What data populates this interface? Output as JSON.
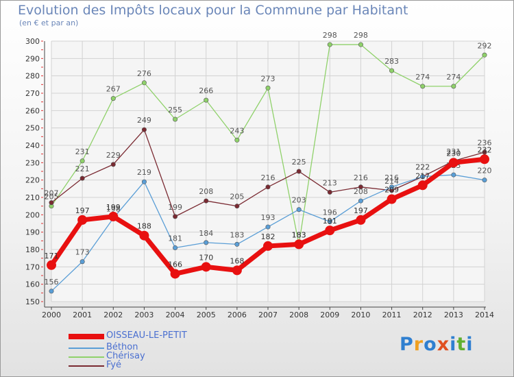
{
  "title": "Evolution des Impôts locaux pour la Commune par Habitant",
  "subtitle": "(en € et par an)",
  "logo": [
    "P",
    "r",
    "o",
    "x",
    "i",
    "t",
    "i"
  ],
  "logo_colors": [
    "#2f7fd0",
    "#f0a020",
    "#2f7fd0",
    "#e05020",
    "#2f7fd0",
    "#60b030",
    "#2f7fd0"
  ],
  "chart_data": {
    "type": "line",
    "x": [
      2000,
      2001,
      2002,
      2003,
      2004,
      2005,
      2006,
      2007,
      2008,
      2009,
      2010,
      2011,
      2012,
      2013,
      2014
    ],
    "ylim": [
      150,
      300
    ],
    "yticks": [
      150,
      160,
      170,
      180,
      190,
      200,
      210,
      220,
      230,
      240,
      250,
      260,
      270,
      280,
      290,
      300
    ],
    "grid": true,
    "legend_position": "bottom-left",
    "series": [
      {
        "name": "Chérisay",
        "color": "#8fd16a",
        "values": [
          205,
          231,
          267,
          276,
          255,
          266,
          243,
          273,
          183,
          298,
          298,
          283,
          274,
          274,
          292
        ]
      },
      {
        "name": "Fyé",
        "color": "#7a2a32",
        "values": [
          207,
          221,
          229,
          249,
          199,
          208,
          205,
          216,
          225,
          213,
          216,
          214,
          222,
          231,
          236
        ]
      },
      {
        "name": "Béthon",
        "color": "#5a9ed6",
        "values": [
          156,
          173,
          198,
          219,
          181,
          184,
          183,
          193,
          203,
          196,
          208,
          216,
          222,
          223,
          220
        ]
      },
      {
        "name": "OISSEAU-LE-PETIT",
        "color": "#e81010",
        "values": [
          171,
          197,
          199,
          188,
          166,
          170,
          168,
          182,
          183,
          191,
          197,
          209,
          217,
          230,
          232
        ]
      }
    ],
    "legend_order": [
      "OISSEAU-LE-PETIT",
      "Béthon",
      "Chérisay",
      "Fyé"
    ]
  }
}
